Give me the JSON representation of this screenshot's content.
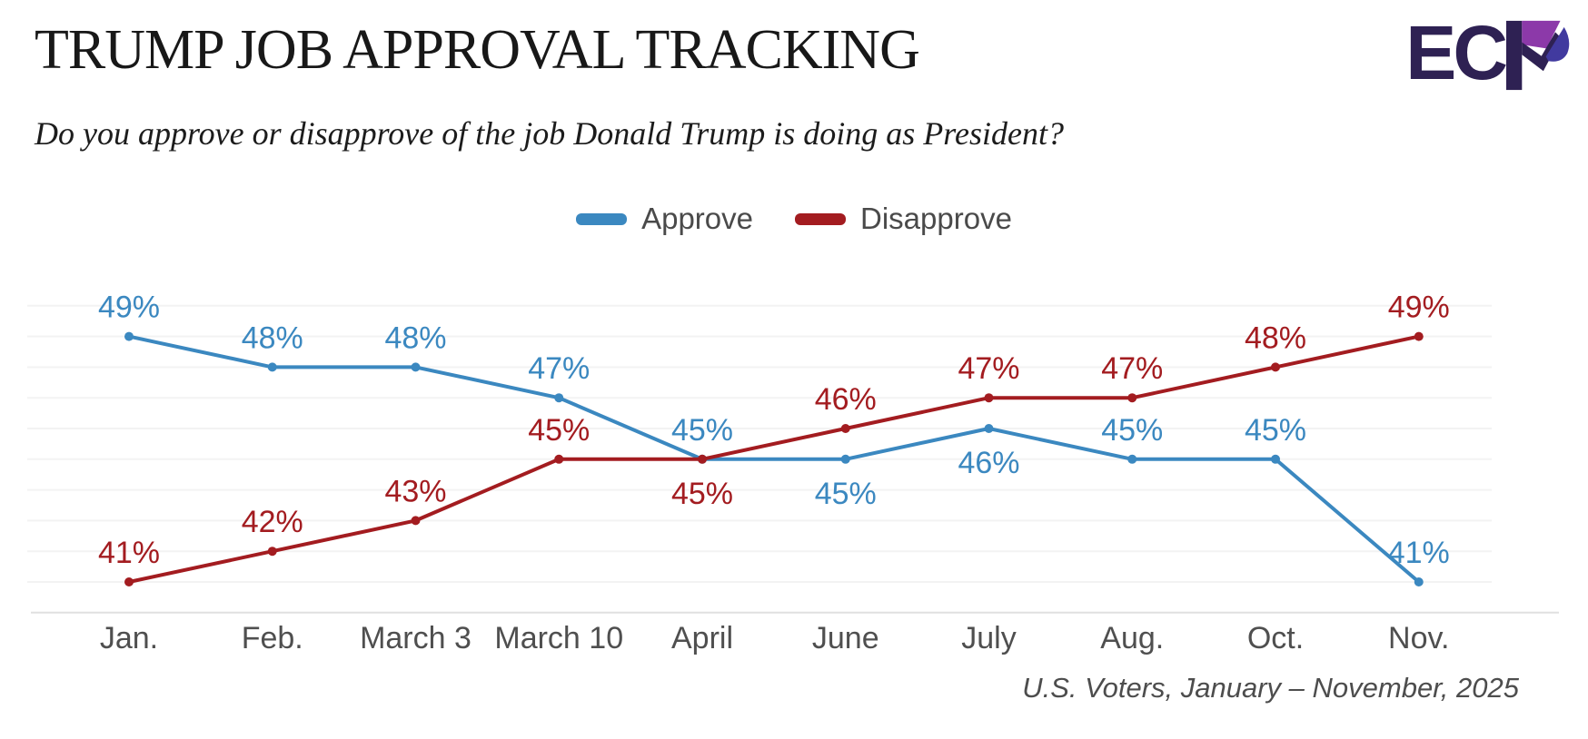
{
  "header": {
    "title": "TRUMP JOB APPROVAL TRACKING",
    "subtitle": "Do you approve or disapprove of the job Donald Trump is doing as President?",
    "logo_text": "EC"
  },
  "legend": {
    "approve_label": "Approve",
    "disapprove_label": "Disapprove"
  },
  "footer": {
    "source": "U.S. Voters, January – November, 2025"
  },
  "colors": {
    "approve": "#3b88c0",
    "disapprove": "#a31c20",
    "grid": "#f3f3f3",
    "axis": "#e0e0e0",
    "axis_text": "#4f4f4f",
    "logo_navy": "#2e2153",
    "logo_purple": "#8c39a9",
    "logo_indigo": "#413a9f"
  },
  "chart_data": {
    "type": "line",
    "title": "Trump Job Approval Tracking",
    "categories": [
      "Jan.",
      "Feb.",
      "March 3",
      "March 10",
      "April",
      "June",
      "July",
      "Aug.",
      "Oct.",
      "Nov."
    ],
    "series": [
      {
        "name": "Approve",
        "color": "#3b88c0",
        "values": [
          49,
          48,
          48,
          47,
          45,
          45,
          46,
          45,
          45,
          41
        ],
        "label_below_indices": [
          5,
          6
        ]
      },
      {
        "name": "Disapprove",
        "color": "#a31c20",
        "values": [
          41,
          42,
          43,
          45,
          45,
          46,
          47,
          47,
          48,
          49
        ],
        "label_below_indices": [
          4
        ]
      }
    ],
    "unit": "%",
    "ylim": [
      40,
      50
    ],
    "grid": "horizontal, one line per percentage point",
    "legend_position": "top-center",
    "source_note": "U.S. Voters, January – November, 2025"
  }
}
